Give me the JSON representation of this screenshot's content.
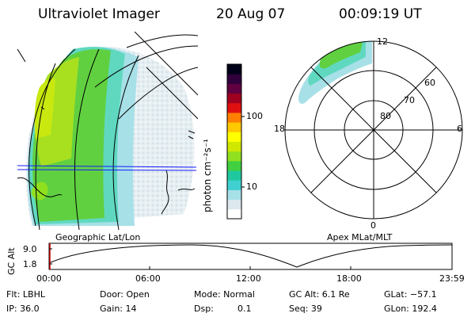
{
  "header": {
    "title": "Ultraviolet Imager",
    "date": "20 Aug 07",
    "time": "00:09:19 UT"
  },
  "colorbar": {
    "unit_label": "photon cm⁻²s⁻¹",
    "tick_100": "100",
    "tick_10": "10",
    "colors": [
      "#ffffff",
      "#dde8ee",
      "#a8e0e8",
      "#40d0d0",
      "#20c8a0",
      "#40d040",
      "#90e020",
      "#d0e800",
      "#ffff00",
      "#ffc800",
      "#ff8000",
      "#e01010",
      "#a00020",
      "#600040",
      "#30003c",
      "#000018"
    ]
  },
  "polar_plot": {
    "label_12": "12",
    "label_0": "0",
    "label_6": "6",
    "label_18": "18",
    "label_60": "60",
    "label_70": "70",
    "label_80": "80"
  },
  "map": {
    "left_caption": "Geographic Lat/Lon",
    "right_caption": "Apex MLat/MLT"
  },
  "altitude_plot": {
    "ylabel": "GC Alt",
    "tick_top": "9.0",
    "tick_bottom": "1.8",
    "x_ticks": [
      "00:00",
      "06:00",
      "12:00",
      "18:00",
      "23:59"
    ]
  },
  "info": {
    "filter": "Flt: LBHL",
    "ip": "IP: 36.0",
    "door": "Door: Open",
    "gain": "Gain: 14",
    "mode": "Mode: Normal",
    "dsp_label": "Dsp:",
    "dsp_value": "0.1",
    "gc_alt": "GC Alt: 6.1 Re",
    "seq": "Seq: 39",
    "glat": "GLat: −57.1",
    "glon": "GLon: 192.4"
  }
}
